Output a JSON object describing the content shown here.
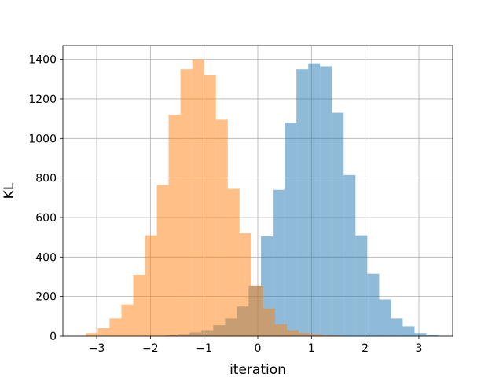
{
  "chart_data": {
    "type": "bar",
    "xlabel": "iteration",
    "ylabel": "KL",
    "xlim": [
      -3.63,
      3.63
    ],
    "ylim": [
      0,
      1470
    ],
    "grid": true,
    "x_ticks": [
      -3,
      -2,
      -1,
      0,
      1,
      2,
      3
    ],
    "x_tick_labels": [
      "−3",
      "−2",
      "−1",
      "0",
      "1",
      "2",
      "3"
    ],
    "y_ticks": [
      0,
      200,
      400,
      600,
      800,
      1000,
      1200,
      1400
    ],
    "y_tick_labels": [
      "0",
      "200",
      "400",
      "600",
      "800",
      "1000",
      "1200",
      "1400"
    ],
    "series": [
      {
        "color": "#1f77b4",
        "opacity": 0.5,
        "bin_edges": [
          -1.71,
          -1.49,
          -1.27,
          -1.05,
          -0.83,
          -0.61,
          -0.39,
          -0.17,
          0.06,
          0.28,
          0.5,
          0.72,
          0.94,
          1.16,
          1.38,
          1.6,
          1.82,
          2.04,
          2.26,
          2.48,
          2.7,
          2.92,
          3.14,
          3.36
        ],
        "counts": [
          5,
          10,
          18,
          30,
          55,
          90,
          150,
          255,
          505,
          740,
          1080,
          1350,
          1380,
          1365,
          1130,
          815,
          510,
          315,
          185,
          90,
          50,
          15,
          5
        ]
      },
      {
        "color": "#ff7f0e",
        "opacity": 0.5,
        "bin_edges": [
          -3.2,
          -2.98,
          -2.76,
          -2.54,
          -2.32,
          -2.1,
          -1.88,
          -1.66,
          -1.44,
          -1.22,
          -1.0,
          -0.78,
          -0.56,
          -0.34,
          -0.12,
          0.1,
          0.32,
          0.54,
          0.76,
          0.98,
          1.2,
          1.42,
          1.64
        ],
        "counts": [
          15,
          40,
          90,
          160,
          310,
          510,
          765,
          1120,
          1350,
          1400,
          1320,
          1095,
          745,
          520,
          255,
          140,
          60,
          30,
          15,
          10,
          5,
          3
        ]
      }
    ]
  }
}
